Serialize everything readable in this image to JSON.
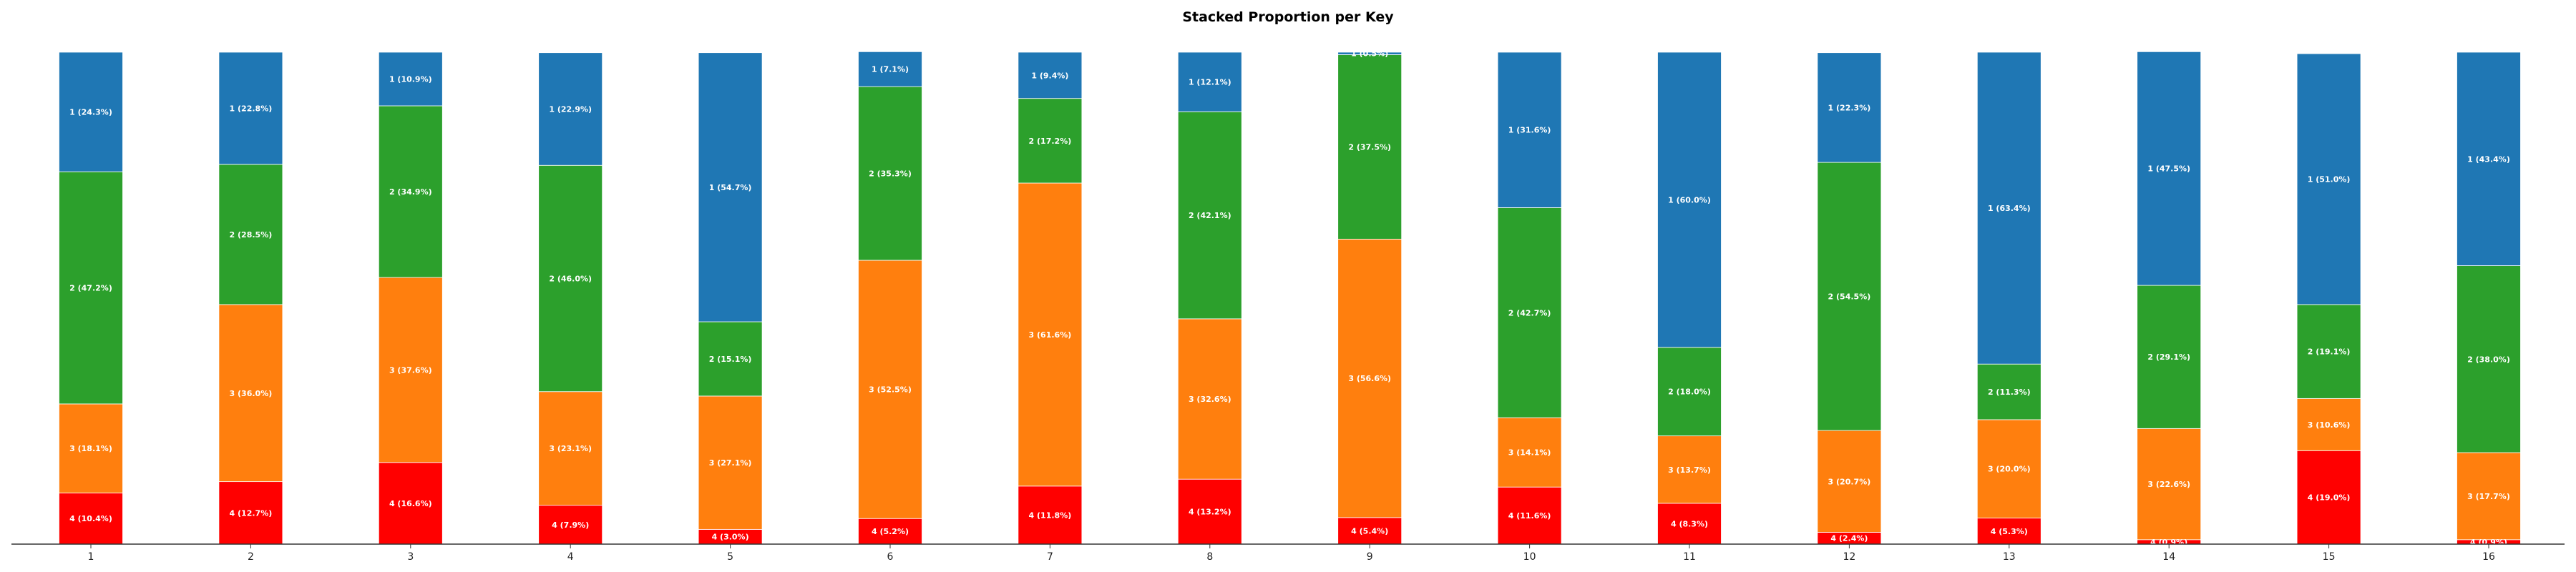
{
  "chart_data": {
    "type": "bar",
    "stacked": true,
    "title": "Stacked Proportion per Key",
    "xlabel": "",
    "ylabel": "",
    "categories": [
      "1",
      "2",
      "3",
      "4",
      "5",
      "6",
      "7",
      "8",
      "9",
      "10",
      "11",
      "12",
      "13",
      "14",
      "15",
      "16"
    ],
    "stack_order_bottom_to_top": [
      "4",
      "3",
      "2",
      "1"
    ],
    "series": [
      {
        "key": "4",
        "color": "#ff0000",
        "values": [
          10.4,
          12.7,
          16.6,
          7.9,
          3.0,
          5.2,
          11.8,
          13.2,
          5.4,
          11.6,
          8.3,
          2.4,
          5.3,
          0.9,
          19.0,
          0.9
        ],
        "labels": [
          "4 (10.4%)",
          "4 (12.7%)",
          "4 (16.6%)",
          "4 (7.9%)",
          "4 (3.0%)",
          "4 (5.2%)",
          "4 (11.8%)",
          "4 (13.2%)",
          "4 (5.4%)",
          "4 (11.6%)",
          "4 (8.3%)",
          "4 (2.4%)",
          "4 (5.3%)",
          "4 (0.9%)",
          "4 (19.0%)",
          "4 (0.9%)"
        ]
      },
      {
        "key": "3",
        "color": "#ff7f0e",
        "values": [
          18.1,
          36.0,
          37.6,
          23.1,
          27.1,
          52.5,
          61.6,
          32.6,
          56.6,
          14.1,
          13.7,
          20.7,
          20.0,
          22.6,
          10.6,
          17.7
        ],
        "labels": [
          "3 (18.1%)",
          "3 (36.0%)",
          "3 (37.6%)",
          "3 (23.1%)",
          "3 (27.1%)",
          "3 (52.5%)",
          "3 (61.6%)",
          "3 (32.6%)",
          "3 (56.6%)",
          "3 (14.1%)",
          "3 (13.7%)",
          "3 (20.7%)",
          "3 (20.0%)",
          "3 (22.6%)",
          "3 (10.6%)",
          "3 (17.7%)"
        ]
      },
      {
        "key": "2",
        "color": "#2ca02c",
        "values": [
          47.2,
          28.5,
          34.9,
          46.0,
          15.1,
          35.3,
          17.2,
          42.1,
          37.5,
          42.7,
          18.0,
          54.5,
          11.3,
          29.1,
          19.1,
          38.0
        ],
        "labels": [
          "2 (47.2%)",
          "2 (28.5%)",
          "2 (34.9%)",
          "2 (46.0%)",
          "2 (15.1%)",
          "2 (35.3%)",
          "2 (17.2%)",
          "2 (42.1%)",
          "2 (37.5%)",
          "2 (42.7%)",
          "2 (18.0%)",
          "2 (54.5%)",
          "2 (11.3%)",
          "2 (29.1%)",
          "2 (19.1%)",
          "2 (38.0%)"
        ]
      },
      {
        "key": "1",
        "color": "#1f77b4",
        "values": [
          24.3,
          22.8,
          10.9,
          22.9,
          54.7,
          7.1,
          9.4,
          12.1,
          0.5,
          31.6,
          60.0,
          22.3,
          63.4,
          47.5,
          51.0,
          43.4
        ],
        "labels": [
          "1 (24.3%)",
          "1 (22.8%)",
          "1 (10.9%)",
          "1 (22.9%)",
          "1 (54.7%)",
          "1 (7.1%)",
          "1 (9.4%)",
          "1 (12.1%)",
          "1 (0.5%)",
          "1 (31.6%)",
          "1 (60.0%)",
          "1 (22.3%)",
          "1 (63.4%)",
          "1 (47.5%)",
          "1 (51.0%)",
          "1 (43.4%)"
        ]
      }
    ],
    "ylim": [
      0,
      100
    ],
    "grid": false,
    "legend": "none"
  }
}
